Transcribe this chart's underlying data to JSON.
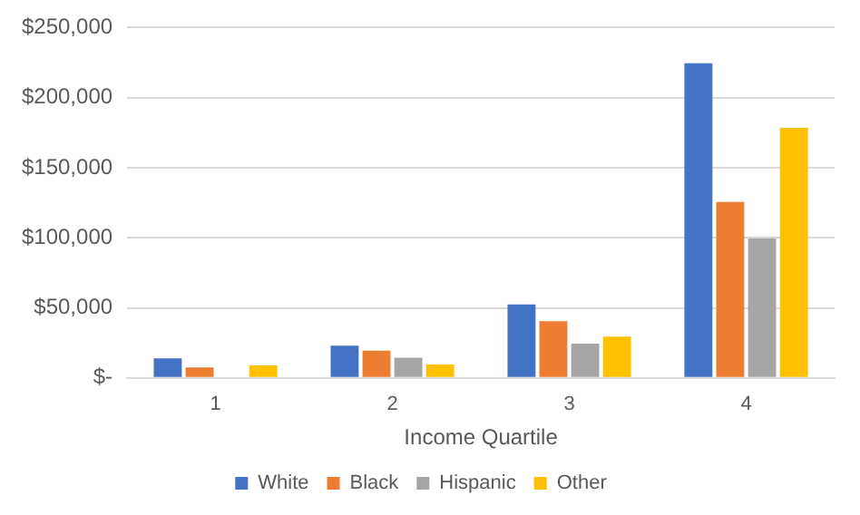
{
  "chart_data": {
    "type": "bar",
    "xlabel": "Income Quartile",
    "categories": [
      "1",
      "2",
      "3",
      "4"
    ],
    "series": [
      {
        "name": "White",
        "color": "#4472c4",
        "values": [
          14000,
          23000,
          52500,
          224500
        ]
      },
      {
        "name": "Black",
        "color": "#ed7d31",
        "values": [
          7500,
          19500,
          40500,
          125500
        ]
      },
      {
        "name": "Hispanic",
        "color": "#a5a5a5",
        "values": [
          0,
          14500,
          24500,
          99500
        ]
      },
      {
        "name": "Other",
        "color": "#ffc000",
        "values": [
          9000,
          9500,
          29500,
          178500
        ]
      }
    ],
    "ylim": [
      0,
      250000
    ],
    "yticks": [
      {
        "value": 0,
        "label": "$-"
      },
      {
        "value": 50000,
        "label": "$50,000"
      },
      {
        "value": 100000,
        "label": "$100,000"
      },
      {
        "value": 150000,
        "label": "$150,000"
      },
      {
        "value": 200000,
        "label": "$200,000"
      },
      {
        "value": 250000,
        "label": "$250,000"
      }
    ],
    "grid": "y",
    "legend": "bottom"
  }
}
